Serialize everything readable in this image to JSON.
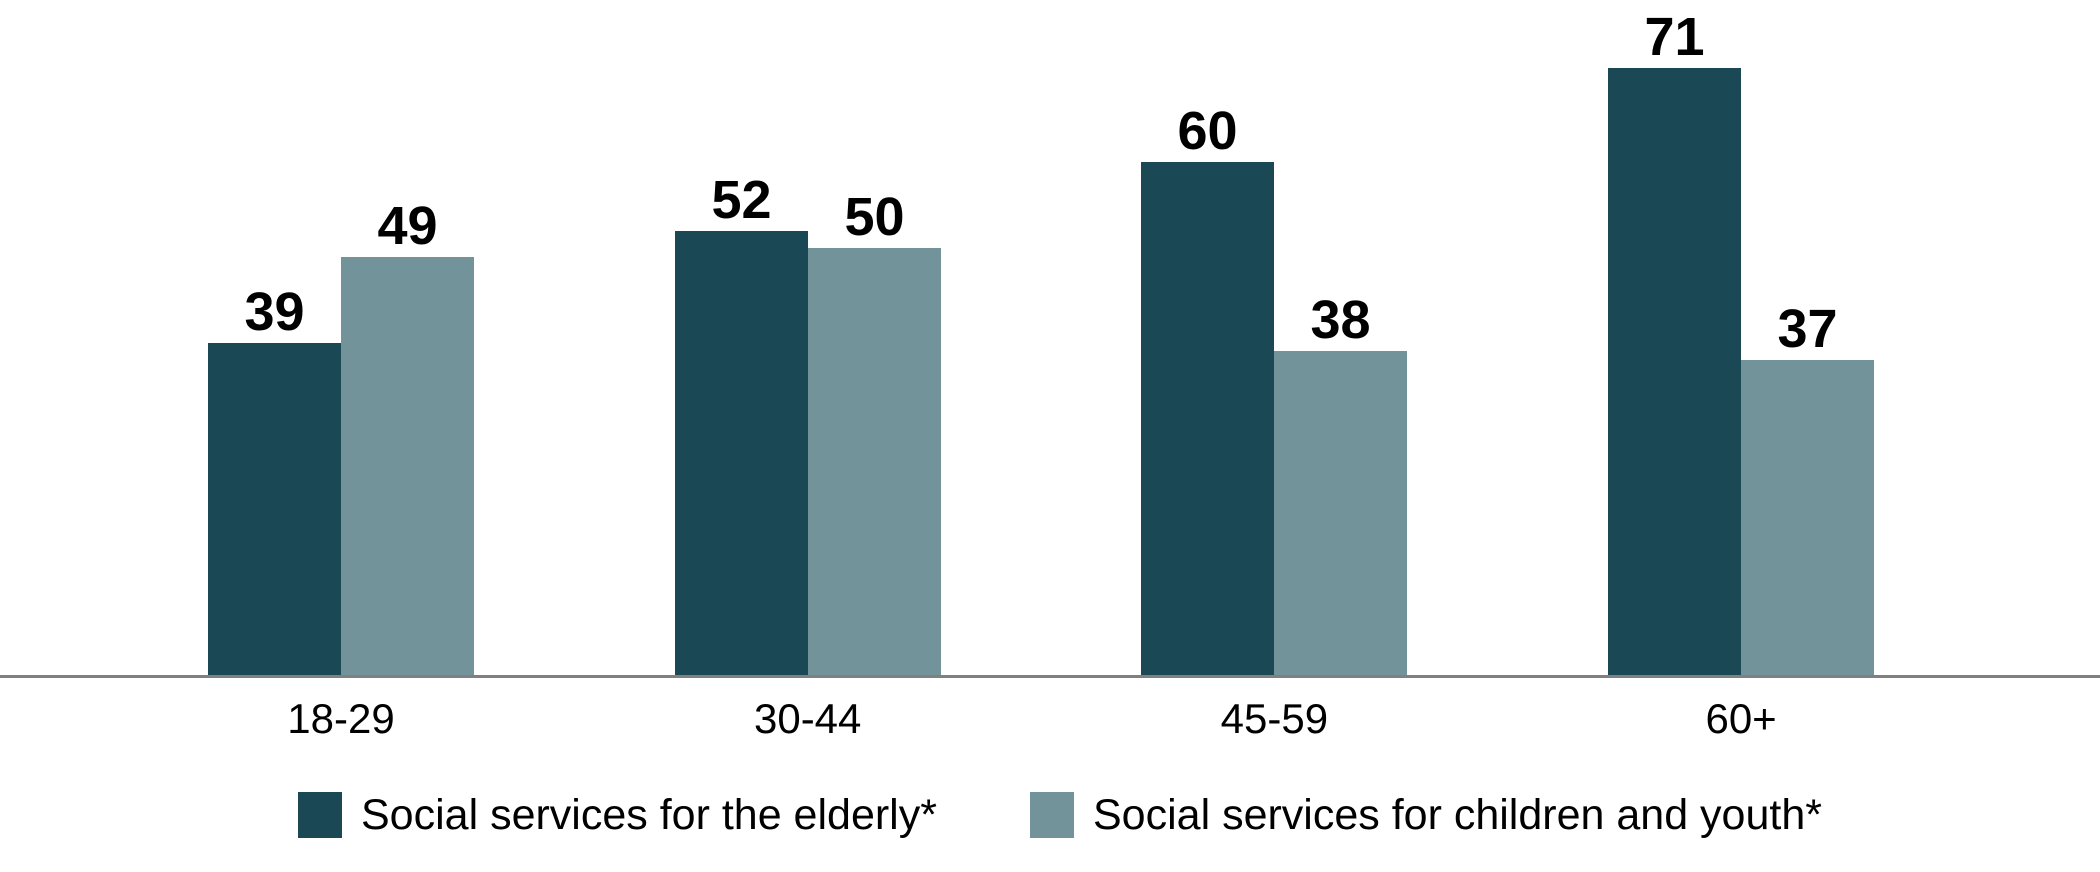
{
  "chart_data": {
    "type": "bar",
    "title": "",
    "xlabel": "",
    "ylabel": "",
    "categories": [
      "18-29",
      "30-44",
      "45-59",
      "60+"
    ],
    "series": [
      {
        "name": "Social services for the elderly*",
        "color": "#1A4955",
        "values": [
          39,
          52,
          60,
          71
        ]
      },
      {
        "name": "Social services for children and youth*",
        "color": "#73939A",
        "values": [
          49,
          50,
          38,
          37
        ]
      }
    ],
    "ylim": [
      0,
      80
    ],
    "grid": false,
    "y_axis_shown": false,
    "value_labels_shown": true,
    "legend_position": "bottom",
    "axis_line_color": "#808080",
    "value_label_color": "#000000",
    "tick_label_color": "#000000",
    "background": "#FFFFFF"
  }
}
